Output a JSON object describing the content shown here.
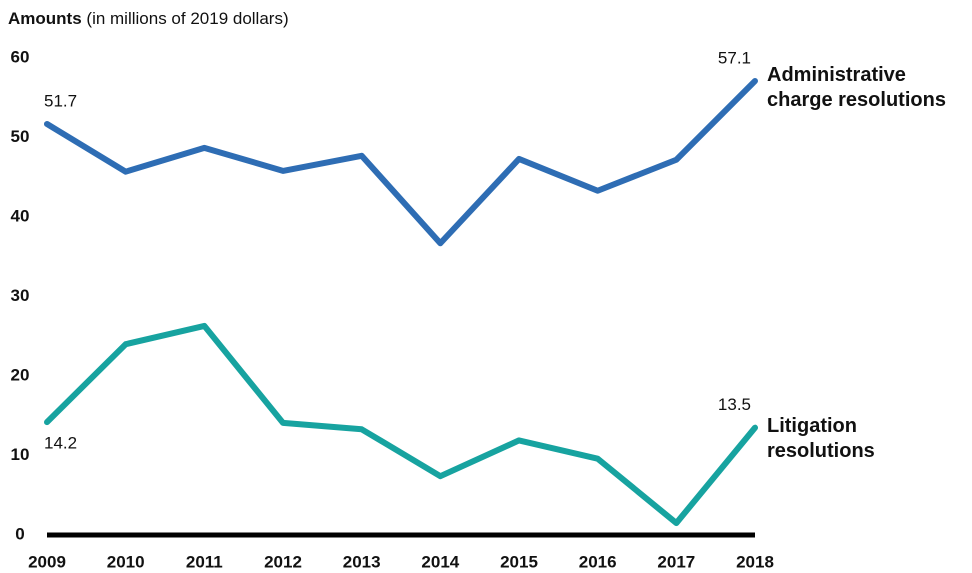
{
  "chart_data": {
    "type": "line",
    "title": "Amounts",
    "subtitle": "(in millions of 2019 dollars)",
    "categories": [
      "2009",
      "2010",
      "2011",
      "2012",
      "2013",
      "2014",
      "2015",
      "2016",
      "2017",
      "2018"
    ],
    "series": [
      {
        "name": "Administrative charge resolutions",
        "color": "#2e6db4",
        "values": [
          51.7,
          45.7,
          48.7,
          45.8,
          47.7,
          36.7,
          47.3,
          43.3,
          47.2,
          57.1
        ]
      },
      {
        "name": "Litigation resolutions",
        "color": "#17a3a0",
        "values": [
          14.2,
          24.0,
          26.3,
          14.1,
          13.3,
          7.4,
          11.9,
          9.6,
          1.5,
          13.5
        ]
      }
    ],
    "ylim": [
      0,
      60
    ],
    "yticks": [
      0,
      10,
      20,
      30,
      40,
      50,
      60
    ],
    "grid": false
  }
}
